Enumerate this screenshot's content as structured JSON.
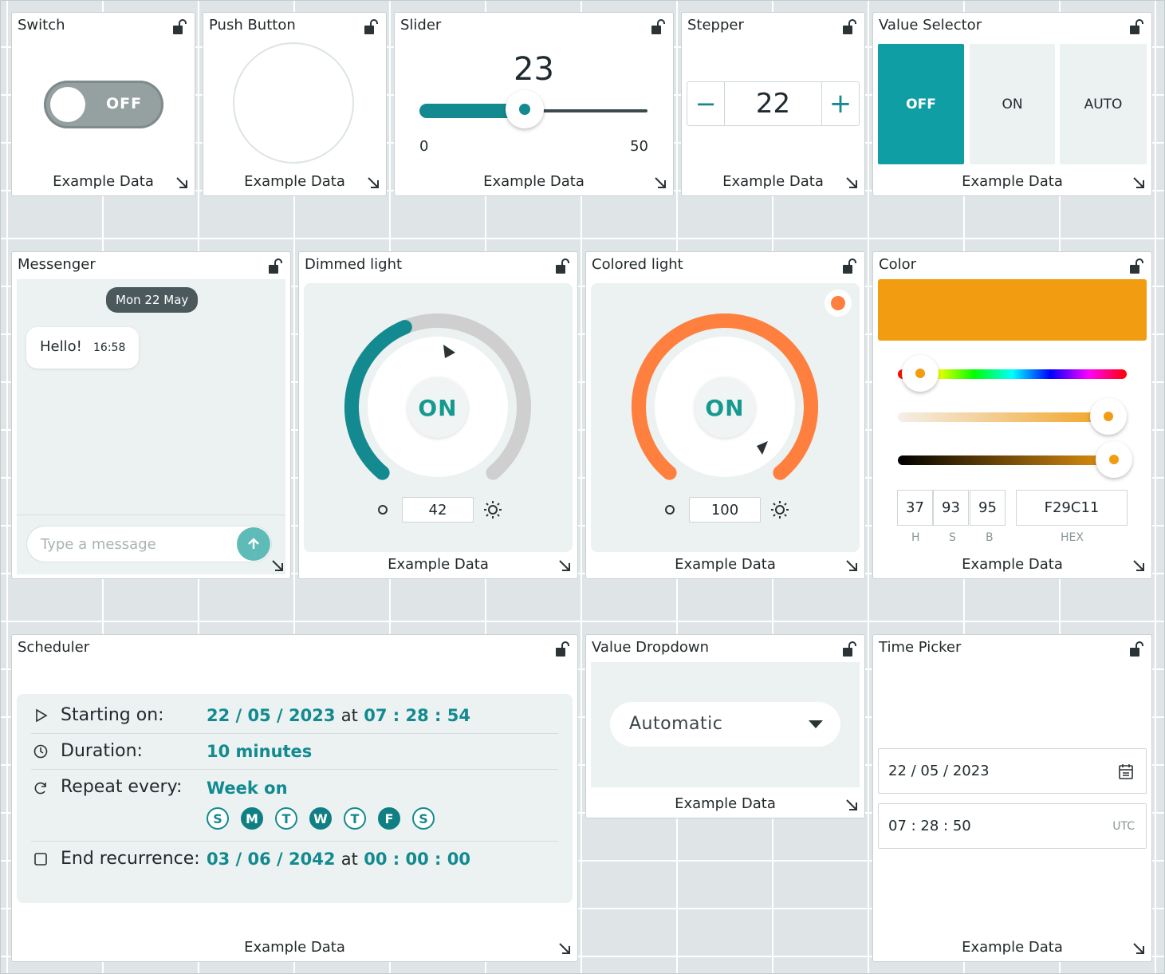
{
  "footer_label": "Example Data",
  "switch": {
    "title": "Switch",
    "state": "OFF"
  },
  "push_button": {
    "title": "Push Button"
  },
  "slider": {
    "title": "Slider",
    "value": "23",
    "min": "0",
    "max": "50",
    "fraction": 0.46
  },
  "stepper": {
    "title": "Stepper",
    "value": "22",
    "minus": "−",
    "plus": "+"
  },
  "value_selector": {
    "title": "Value Selector",
    "options": [
      "OFF",
      "ON",
      "AUTO"
    ],
    "selected": "OFF"
  },
  "messenger": {
    "title": "Messenger",
    "date_chip": "Mon 22 May",
    "message": "Hello!",
    "time": "16:58",
    "placeholder": "Type a message"
  },
  "dimmed_light": {
    "title": "Dimmed light",
    "state": "ON",
    "value": "42",
    "level": 0.42
  },
  "colored_light": {
    "title": "Colored light",
    "state": "ON",
    "value": "100",
    "level": 1.0,
    "color": "#FF7F3E"
  },
  "color": {
    "title": "Color",
    "swatch": "#F29C11",
    "h": "37",
    "s": "93",
    "b": "95",
    "hex": "F29C11",
    "h_label": "H",
    "s_label": "S",
    "b_label": "B",
    "hex_label": "HEX"
  },
  "scheduler": {
    "title": "Scheduler",
    "starting_label": "Starting on:",
    "starting_date": "22 / 05 / 2023",
    "at1": "at",
    "starting_time": "07 : 28 : 54",
    "duration_label": "Duration:",
    "duration_value": "10 minutes",
    "repeat_label": "Repeat every:",
    "repeat_value": "Week on",
    "days": [
      {
        "letter": "S",
        "active": false
      },
      {
        "letter": "M",
        "active": true
      },
      {
        "letter": "T",
        "active": false
      },
      {
        "letter": "W",
        "active": true
      },
      {
        "letter": "T",
        "active": false
      },
      {
        "letter": "F",
        "active": true
      },
      {
        "letter": "S",
        "active": false
      }
    ],
    "end_label": "End recurrence:",
    "end_date": "03 / 06 / 2042",
    "at2": "at",
    "end_time": "00 : 00 : 00"
  },
  "value_dropdown": {
    "title": "Value Dropdown",
    "selected": "Automatic"
  },
  "time_picker": {
    "title": "Time Picker",
    "date": "22 / 05 / 2023",
    "time": "07 : 28 : 50",
    "tz": "UTC"
  },
  "colors": {
    "teal": "#128A90",
    "orange": "#FF7F3E",
    "grey": "#95A0A0"
  }
}
